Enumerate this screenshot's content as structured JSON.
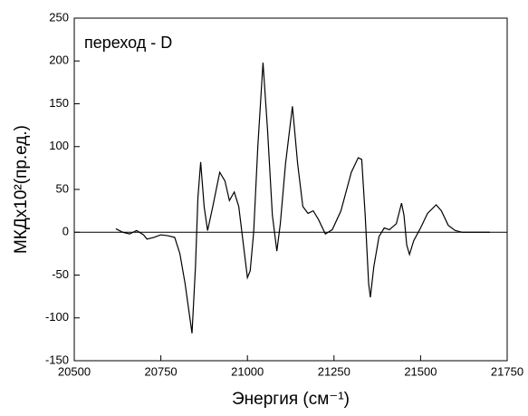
{
  "chart_data": {
    "type": "line",
    "annotation": "переход - D",
    "x_label": "Энергия (см⁻¹)",
    "y_label": "МКДх10²(пр.ед.)",
    "x": [
      20620,
      20640,
      20660,
      20680,
      20700,
      20710,
      20730,
      20750,
      20770,
      20790,
      20805,
      20820,
      20840,
      20850,
      20857,
      20865,
      20875,
      20885,
      20900,
      20920,
      20935,
      20948,
      20962,
      20975,
      20990,
      21000,
      21008,
      21018,
      21030,
      21045,
      21058,
      21072,
      21085,
      21095,
      21110,
      21130,
      21145,
      21160,
      21175,
      21190,
      21205,
      21225,
      21245,
      21270,
      21300,
      21320,
      21330,
      21340,
      21350,
      21355,
      21365,
      21380,
      21395,
      21410,
      21430,
      21445,
      21452,
      21460,
      21468,
      21480,
      21500,
      21520,
      21545,
      21560,
      21580,
      21600,
      21620,
      21700
    ],
    "series": [
      {
        "color": "#000000",
        "values": [
          4,
          0,
          -2,
          2,
          -3,
          -8,
          -6,
          -3,
          -4,
          -6,
          -25,
          -60,
          -118,
          -40,
          40,
          82,
          30,
          2,
          30,
          70,
          60,
          37,
          47,
          30,
          -20,
          -53,
          -45,
          0,
          100,
          198,
          120,
          20,
          -22,
          10,
          80,
          147,
          80,
          30,
          22,
          25,
          15,
          -2,
          3,
          25,
          70,
          87,
          85,
          20,
          -60,
          -76,
          -40,
          -5,
          5,
          3,
          10,
          34,
          20,
          -15,
          -26,
          -10,
          5,
          22,
          32,
          25,
          8,
          2,
          0,
          0
        ]
      }
    ],
    "xlim": [
      20500,
      21750
    ],
    "xticks": [
      20500,
      20750,
      21000,
      21250,
      21500,
      21750
    ],
    "ylim": [
      -150,
      250
    ],
    "yticks": [
      -150,
      -100,
      -50,
      0,
      50,
      100,
      150,
      200,
      250
    ]
  }
}
